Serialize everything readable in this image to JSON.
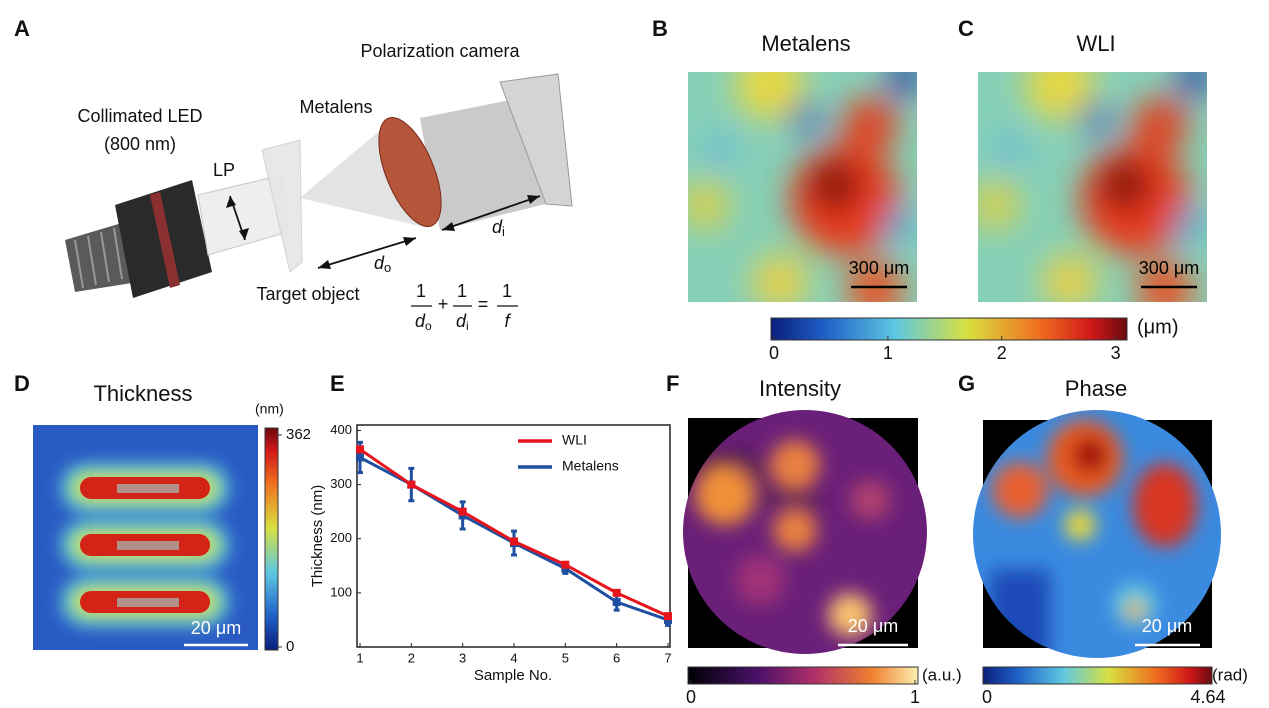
{
  "panel_labels": [
    "A",
    "B",
    "C",
    "D",
    "E",
    "F",
    "G"
  ],
  "panel_a": {
    "light_source": [
      "Collimated LED",
      "(800 nm)"
    ],
    "polarizer": "LP",
    "lens": "Metalens",
    "camera": "Polarization camera",
    "object": "Target object",
    "object_distance": {
      "base": "d",
      "sub": "o"
    },
    "image_distance": {
      "base": "d",
      "sub": "i"
    },
    "equation": {
      "terms": [
        {
          "num": "1",
          "den": "d",
          "sub": "o"
        },
        {
          "num": "1",
          "den": "d",
          "sub": "i"
        },
        {
          "num": "1",
          "den": "f"
        }
      ],
      "ops": [
        "+",
        "="
      ]
    }
  },
  "panel_b": {
    "title": "Metalens",
    "scale_bar": "300 μm"
  },
  "panel_c": {
    "title": "WLI",
    "scale_bar": "300 μm"
  },
  "colorbar_bc": {
    "unit": "(μm)",
    "lim": [
      0,
      3.1
    ],
    "ticks": [
      0,
      1,
      2,
      3
    ]
  },
  "panel_d": {
    "title": "Thickness",
    "scale_bar": "20 μm",
    "colorbar": {
      "unit": "(nm)",
      "lim": [
        0,
        362
      ],
      "ticks": [
        0,
        362
      ]
    }
  },
  "chart_data": {
    "type": "line",
    "x": [
      1,
      2,
      3,
      4,
      5,
      6,
      7
    ],
    "xlim": [
      1,
      7
    ],
    "xticks": [
      1,
      2,
      3,
      4,
      5,
      6,
      7
    ],
    "ylim": [
      0,
      410
    ],
    "yticks": [
      100,
      200,
      300,
      400
    ],
    "xlabel": "Sample No.",
    "ylabel": "Thickness (nm)",
    "legend": "upper right",
    "series": [
      {
        "name": "WLI",
        "color": "#e8141c",
        "values": [
          365,
          300,
          250,
          195,
          152,
          100,
          57
        ]
      },
      {
        "name": "Metalens",
        "color": "#1f4fa0",
        "values": [
          350,
          300,
          243,
          192,
          145,
          83,
          50
        ],
        "errors": [
          28,
          30,
          25,
          22,
          9,
          15,
          10
        ]
      }
    ]
  },
  "panel_f": {
    "title": "Intensity",
    "scale_bar": "20 μm",
    "colorbar": {
      "unit": "(a.u.)",
      "lim": [
        0,
        1
      ],
      "ticks": [
        0,
        1
      ]
    }
  },
  "panel_g": {
    "title": "Phase",
    "scale_bar": "20 μm",
    "colorbar": {
      "unit": "(rad)",
      "lim": [
        0,
        4.64
      ],
      "ticks": [
        0,
        4.64
      ]
    }
  }
}
